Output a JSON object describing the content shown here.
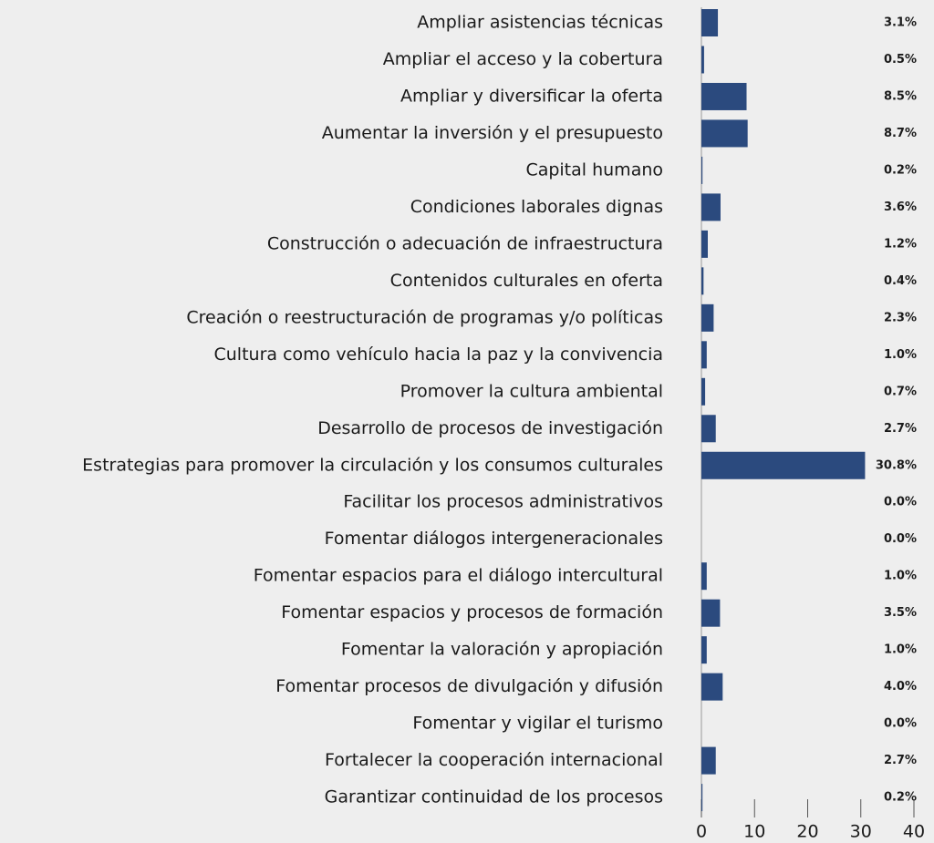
{
  "chart_data": {
    "type": "barh",
    "categories": [
      "Ampliar asistencias técnicas",
      "Ampliar el acceso y la cobertura",
      "Ampliar y diversificar la oferta",
      "Aumentar la inversión y el presupuesto",
      "Capital humano",
      "Condiciones laborales dignas",
      "Construcción o adecuación de infraestructura",
      "Contenidos culturales en oferta",
      "Creación o reestructuración de programas y/o políticas",
      "Cultura como vehículo hacia la paz y la convivencia",
      "Promover la cultura ambiental",
      "Desarrollo de procesos de investigación",
      "Estrategias para promover la circulación y los consumos culturales",
      "Facilitar los procesos administrativos",
      "Fomentar diálogos intergeneracionales",
      "Fomentar espacios para el diálogo intercultural",
      "Fomentar espacios y procesos de formación",
      "Fomentar la valoración y apropiación",
      "Fomentar procesos de divulgación y difusión",
      "Fomentar y vigilar el turismo",
      "Fortalecer la cooperación internacional",
      "Garantizar continuidad de los procesos"
    ],
    "values": [
      3.1,
      0.5,
      8.5,
      8.7,
      0.2,
      3.6,
      1.2,
      0.4,
      2.3,
      1.0,
      0.7,
      2.7,
      30.8,
      0.0,
      0.0,
      1.0,
      3.5,
      1.0,
      4.0,
      0.0,
      2.7,
      0.2
    ],
    "value_labels": [
      "3.1%",
      "0.5%",
      "8.5%",
      "8.7%",
      "0.2%",
      "3.6%",
      "1.2%",
      "0.4%",
      "2.3%",
      "1.0%",
      "0.7%",
      "2.7%",
      "30.8%",
      "0.0%",
      "0.0%",
      "1.0%",
      "3.5%",
      "1.0%",
      "4.0%",
      "0.0%",
      "2.7%",
      "0.2%"
    ],
    "color": "#2b4a7e",
    "xlim": [
      0,
      40
    ],
    "xticks": [
      0,
      10,
      20,
      30,
      40
    ]
  }
}
